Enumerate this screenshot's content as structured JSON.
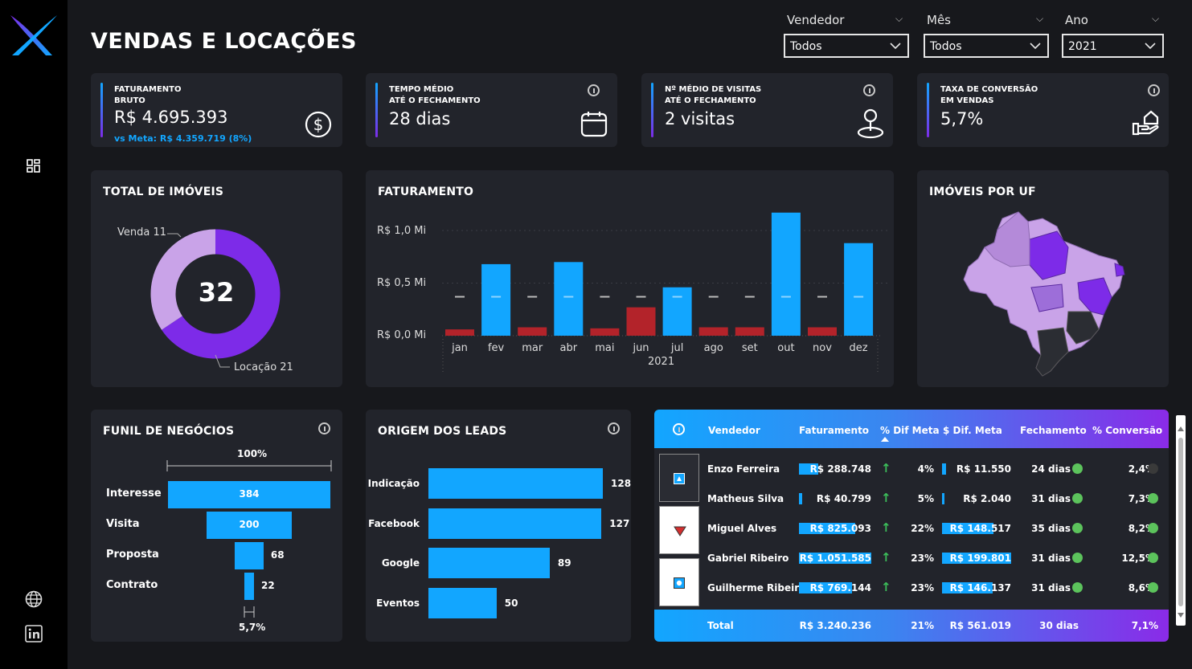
{
  "header": {
    "title": "VENDAS E LOCAÇÕES"
  },
  "slicers": [
    {
      "label": "Vendedor",
      "value": "Todos"
    },
    {
      "label": "Mês",
      "value": "Todos"
    },
    {
      "label": "Ano",
      "value": "2021"
    }
  ],
  "sidebar": {
    "icons": [
      "logo-icon",
      "dashboard-icon",
      "globe-icon",
      "linkedin-icon"
    ]
  },
  "kpis": [
    {
      "label1": "FATURAMENTO",
      "label2": "BRUTO",
      "value": "R$ 4.695.393",
      "sub": "vs Meta: R$ 4.359.719 (8%)",
      "icon": "dollar-icon"
    },
    {
      "label1": "TEMPO MÉDIO",
      "label2": "ATÉ O FECHAMENTO",
      "value": "28 dias",
      "icon": "calendar-icon"
    },
    {
      "label1": "Nº MÉDIO DE VISITAS",
      "label2": "ATÉ O FECHAMENTO",
      "value": "2 visitas",
      "icon": "location-pin-icon"
    },
    {
      "label1": "TAXA DE CONVERSÃO",
      "label2": "EM VENDAS",
      "value": "5,7%",
      "icon": "hand-house-icon"
    }
  ],
  "imoveis": {
    "title": "TOTAL DE IMÓVEIS",
    "total": "32",
    "venda_label": "Venda 11",
    "locacao_label": "Locação 21",
    "venda": 11,
    "locacao": 21
  },
  "faturamento": {
    "title": "FATURAMENTO",
    "ytick_labels": [
      "R$ 1,0 Mi",
      "R$ 0,5 Mi",
      "R$ 0,0 Mi"
    ],
    "year": "2021"
  },
  "uf": {
    "title": "IMÓVEIS POR UF"
  },
  "funil": {
    "title": "FUNIL DE NEGÓCIOS",
    "top_pct": "100%",
    "bottom_pct": "5,7%",
    "stages": [
      {
        "label": "Interesse",
        "value": "384"
      },
      {
        "label": "Visita",
        "value": "200"
      },
      {
        "label": "Proposta",
        "value": "68"
      },
      {
        "label": "Contrato",
        "value": "22"
      }
    ]
  },
  "leads": {
    "title": "ORIGEM DOS LEADS",
    "items": [
      {
        "label": "Indicação",
        "value": "128"
      },
      {
        "label": "Facebook",
        "value": "127"
      },
      {
        "label": "Google",
        "value": "89"
      },
      {
        "label": "Eventos",
        "value": "50"
      }
    ]
  },
  "table": {
    "headers": [
      "Vendedor",
      "Faturamento",
      "% Dif Meta",
      "$ Dif. Meta",
      "Fechamento",
      "% Conversão"
    ],
    "rows": [
      {
        "name": "Enzo Ferreira",
        "fat": "R$ 288.748",
        "pct": "4%",
        "dif": "R$ 11.550",
        "fech": "24 dias",
        "conv": "2,4%",
        "fat_ratio": 0.27,
        "dif_ratio": 0.06,
        "dot": "#3a3a3a",
        "icon": "triangle-up-icon"
      },
      {
        "name": "Matheus Silva",
        "fat": "R$ 40.799",
        "pct": "5%",
        "dif": "R$ 2.040",
        "fech": "31 dias",
        "conv": "7,3%",
        "fat_ratio": 0.04,
        "dif_ratio": 0.02,
        "dot": "#5cc35c",
        "icon": ""
      },
      {
        "name": "Miguel Alves",
        "fat": "R$ 825.093",
        "pct": "22%",
        "dif": "R$ 148.517",
        "fech": "35 dias",
        "conv": "8,2%",
        "fat_ratio": 0.78,
        "dif_ratio": 0.74,
        "dot": "#5cc35c",
        "icon": "triangle-down-icon"
      },
      {
        "name": "Gabriel Ribeiro",
        "fat": "R$ 1.051.585",
        "pct": "23%",
        "dif": "R$ 199.801",
        "fech": "31 dias",
        "conv": "12,5%",
        "fat_ratio": 1.0,
        "dif_ratio": 1.0,
        "dot": "#5cc35c",
        "icon": ""
      },
      {
        "name": "Guilherme Ribeiro",
        "fat": "R$ 769.144",
        "pct": "23%",
        "dif": "R$ 146.137",
        "fech": "31 dias",
        "conv": "8,6%",
        "fat_ratio": 0.73,
        "dif_ratio": 0.73,
        "dot": "#5cc35c",
        "icon": "circle-dot-icon"
      }
    ],
    "total": {
      "label": "Total",
      "fat": "R$ 3.240.236",
      "pct": "21%",
      "dif": "R$ 561.019",
      "fech": "30 dias",
      "conv": "7,1%"
    }
  },
  "colors": {
    "accent": "#12a6ff",
    "purple": "#7d2be8",
    "light_purple": "#c9a3e8",
    "red": "#b3232a",
    "card": "#22242b"
  },
  "chart_data": {
    "type": "bar",
    "categories": [
      "jan",
      "fev",
      "mar",
      "abr",
      "mai",
      "jun",
      "jul",
      "ago",
      "set",
      "out",
      "nov",
      "dez"
    ],
    "values": [
      0.06,
      0.68,
      0.08,
      0.7,
      0.07,
      0.27,
      0.46,
      0.08,
      0.08,
      1.17,
      0.08,
      0.88
    ],
    "target": [
      0.37,
      0.37,
      0.37,
      0.37,
      0.37,
      0.37,
      0.37,
      0.37,
      0.37,
      0.37,
      0.37,
      0.37
    ],
    "above_target": [
      false,
      true,
      false,
      true,
      false,
      false,
      true,
      false,
      false,
      true,
      false,
      true
    ],
    "ylim": [
      0,
      1.2
    ],
    "ylabel_unit": "R$ Mi",
    "xlabel": "2021"
  }
}
